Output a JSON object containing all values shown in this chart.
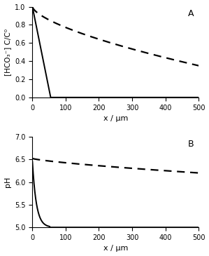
{
  "title_A": "A",
  "title_B": "B",
  "xlabel": "x / μm",
  "ylabel_A": "[HCO₃⁻] C/C⁰",
  "ylabel_B": "pH",
  "xlim": [
    0,
    500
  ],
  "ylim_A": [
    0,
    1.0
  ],
  "ylim_B": [
    5.0,
    7.0
  ],
  "yticks_A": [
    0,
    0.2,
    0.4,
    0.6,
    0.8,
    1.0
  ],
  "yticks_B": [
    5.0,
    5.5,
    6.0,
    6.5,
    7.0
  ],
  "xticks": [
    0,
    100,
    200,
    300,
    400,
    500
  ],
  "solid_color": "#000000",
  "dashed_color": "#000000",
  "bg_color": "#ffffff",
  "solid_lw": 1.4,
  "dashed_lw": 1.6,
  "figsize": [
    2.99,
    3.65
  ],
  "dpi": 100,
  "solid_zero_x_A": 55,
  "dashed_end_A": 0.35,
  "dashed_start_A": 1.0,
  "dashed_power_A": 0.65,
  "solid_start_pH": 6.45,
  "solid_end_pH": 5.0,
  "solid_zero_pH_x": 52,
  "solid_pH_decay": 12,
  "dashed_start_pH": 6.52,
  "dashed_end_pH": 6.2,
  "dashed_power_B": 0.75
}
